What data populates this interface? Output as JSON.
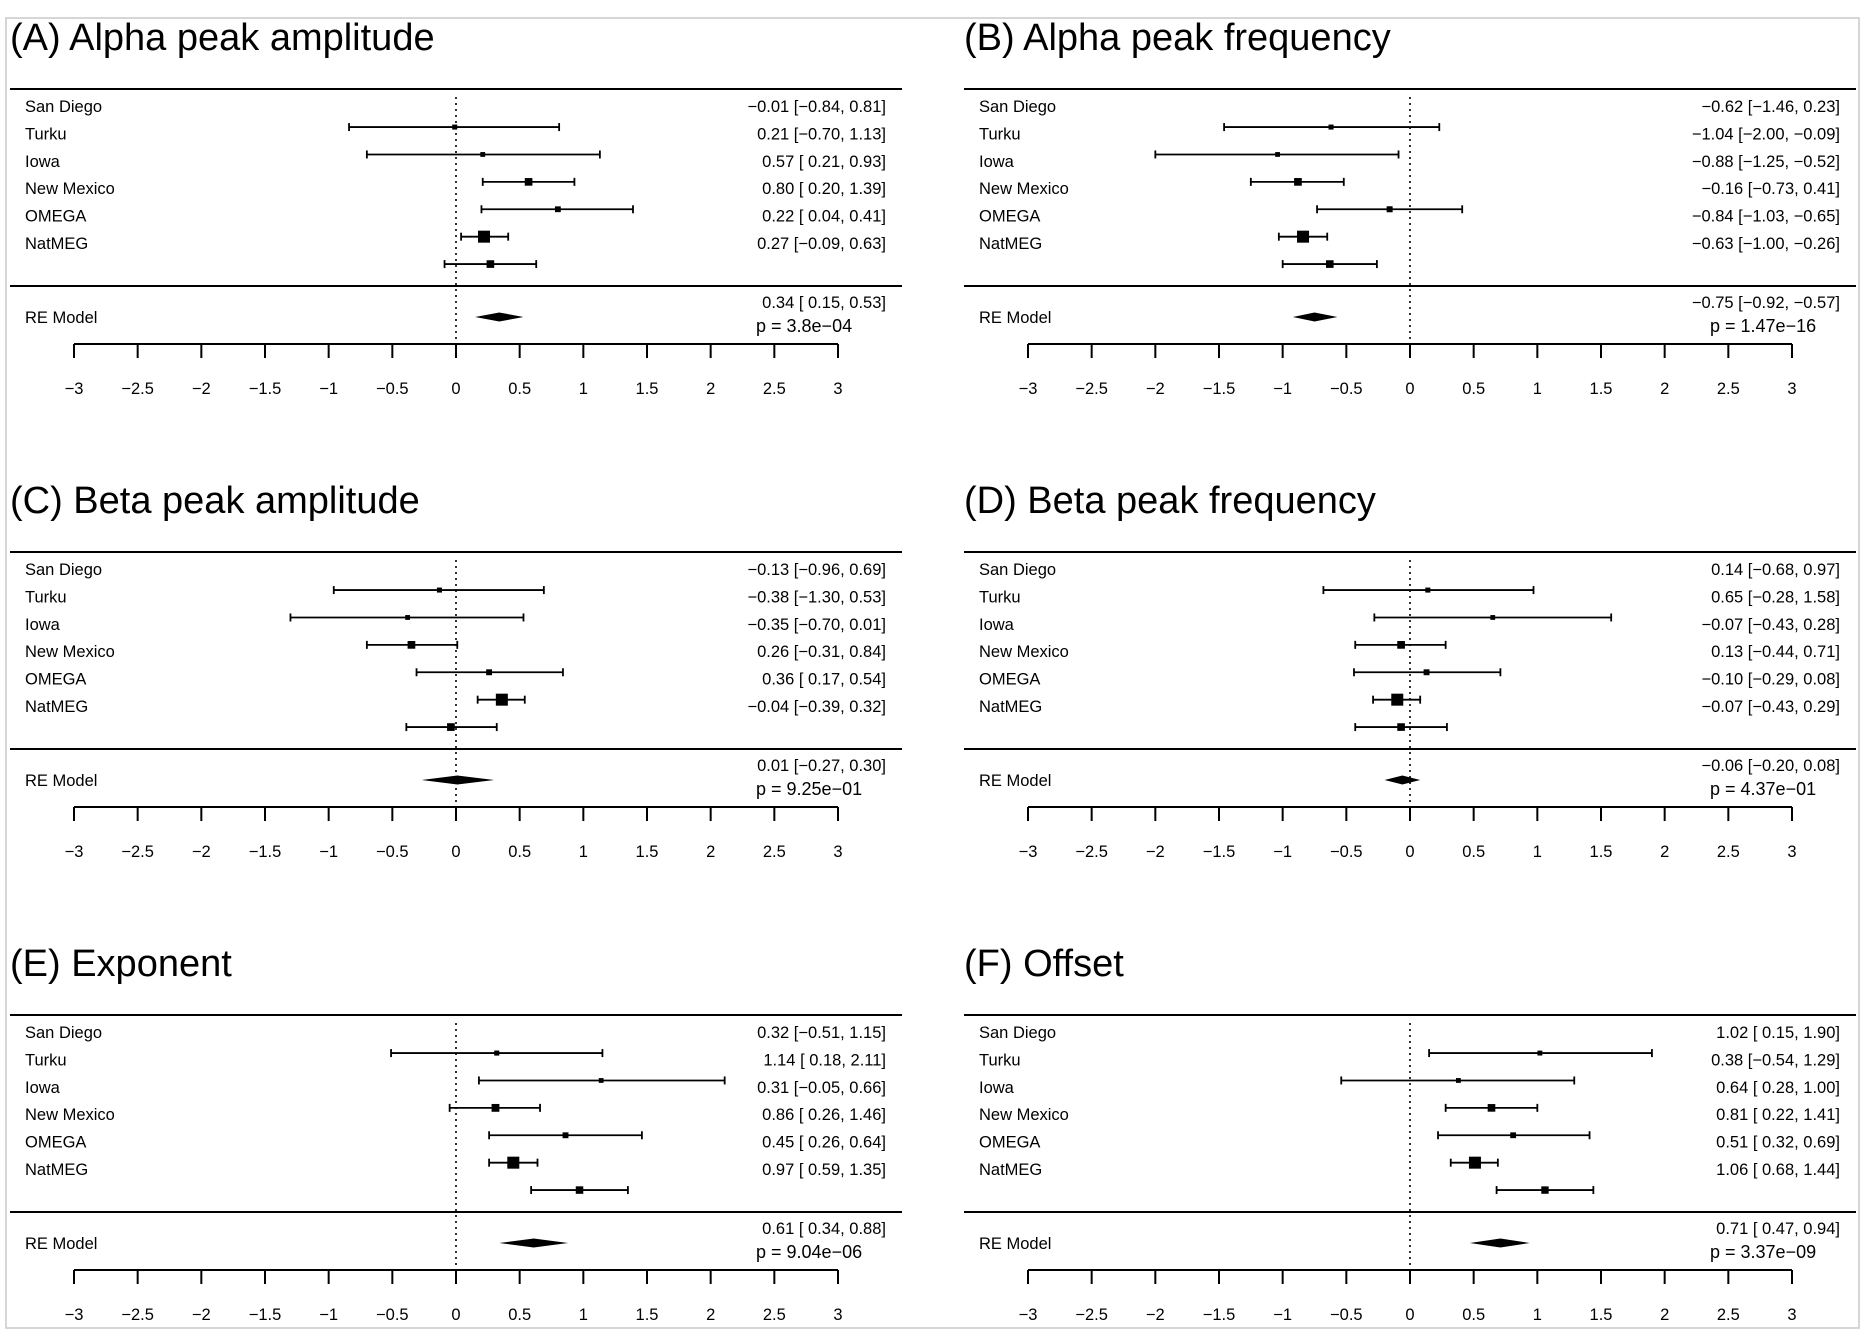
{
  "chart_data": [
    {
      "type": "forest",
      "title": "(A) Alpha peak amplitude",
      "xlim": [
        -3,
        3
      ],
      "xticks": [
        "−3",
        "−2.5",
        "−2",
        "−1.5",
        "−1",
        "−0.5",
        "0",
        "0.5",
        "1",
        "1.5",
        "2",
        "2.5",
        "3"
      ],
      "studies": [
        {
          "name": "San Diego",
          "est": -0.01,
          "lo": -0.84,
          "hi": 0.81,
          "ci_text": "−0.01 [−0.84,  0.81]"
        },
        {
          "name": "Turku",
          "est": 0.21,
          "lo": -0.7,
          "hi": 1.13,
          "ci_text": "0.21 [−0.70,  1.13]"
        },
        {
          "name": "Iowa",
          "est": 0.57,
          "lo": 0.21,
          "hi": 0.93,
          "ci_text": "0.57 [ 0.21,  0.93]"
        },
        {
          "name": "New Mexico",
          "est": 0.8,
          "lo": 0.2,
          "hi": 1.39,
          "ci_text": "0.80 [ 0.20,  1.39]"
        },
        {
          "name": "OMEGA",
          "est": 0.22,
          "lo": 0.04,
          "hi": 0.41,
          "ci_text": "0.22 [ 0.04,  0.41]"
        },
        {
          "name": "NatMEG",
          "est": 0.27,
          "lo": -0.09,
          "hi": 0.63,
          "ci_text": "0.27 [−0.09,  0.63]"
        }
      ],
      "re_model": {
        "label": "RE Model",
        "est": 0.34,
        "lo": 0.15,
        "hi": 0.53,
        "ci_text": "0.34 [ 0.15,  0.53]",
        "p_text": "p = 3.8e−04"
      }
    },
    {
      "type": "forest",
      "title": "(B) Alpha peak frequency",
      "xlim": [
        -3,
        3
      ],
      "xticks": [
        "−3",
        "−2.5",
        "−2",
        "−1.5",
        "−1",
        "−0.5",
        "0",
        "0.5",
        "1",
        "1.5",
        "2",
        "2.5",
        "3"
      ],
      "studies": [
        {
          "name": "San Diego",
          "est": -0.62,
          "lo": -1.46,
          "hi": 0.23,
          "ci_text": "−0.62 [−1.46,  0.23]"
        },
        {
          "name": "Turku",
          "est": -1.04,
          "lo": -2.0,
          "hi": -0.09,
          "ci_text": "−1.04 [−2.00, −0.09]"
        },
        {
          "name": "Iowa",
          "est": -0.88,
          "lo": -1.25,
          "hi": -0.52,
          "ci_text": "−0.88 [−1.25, −0.52]"
        },
        {
          "name": "New Mexico",
          "est": -0.16,
          "lo": -0.73,
          "hi": 0.41,
          "ci_text": "−0.16 [−0.73,  0.41]"
        },
        {
          "name": "OMEGA",
          "est": -0.84,
          "lo": -1.03,
          "hi": -0.65,
          "ci_text": "−0.84 [−1.03, −0.65]"
        },
        {
          "name": "NatMEG",
          "est": -0.63,
          "lo": -1.0,
          "hi": -0.26,
          "ci_text": "−0.63 [−1.00, −0.26]"
        }
      ],
      "re_model": {
        "label": "RE Model",
        "est": -0.75,
        "lo": -0.92,
        "hi": -0.57,
        "ci_text": "−0.75 [−0.92, −0.57]",
        "p_text": "p = 1.47e−16"
      }
    },
    {
      "type": "forest",
      "title": "(C) Beta peak amplitude",
      "xlim": [
        -3,
        3
      ],
      "xticks": [
        "−3",
        "−2.5",
        "−2",
        "−1.5",
        "−1",
        "−0.5",
        "0",
        "0.5",
        "1",
        "1.5",
        "2",
        "2.5",
        "3"
      ],
      "studies": [
        {
          "name": "San Diego",
          "est": -0.13,
          "lo": -0.96,
          "hi": 0.69,
          "ci_text": "−0.13 [−0.96,  0.69]"
        },
        {
          "name": "Turku",
          "est": -0.38,
          "lo": -1.3,
          "hi": 0.53,
          "ci_text": "−0.38 [−1.30,  0.53]"
        },
        {
          "name": "Iowa",
          "est": -0.35,
          "lo": -0.7,
          "hi": 0.01,
          "ci_text": "−0.35 [−0.70,  0.01]"
        },
        {
          "name": "New Mexico",
          "est": 0.26,
          "lo": -0.31,
          "hi": 0.84,
          "ci_text": "0.26 [−0.31,  0.84]"
        },
        {
          "name": "OMEGA",
          "est": 0.36,
          "lo": 0.17,
          "hi": 0.54,
          "ci_text": "0.36 [ 0.17,  0.54]"
        },
        {
          "name": "NatMEG",
          "est": -0.04,
          "lo": -0.39,
          "hi": 0.32,
          "ci_text": "−0.04 [−0.39,  0.32]"
        }
      ],
      "re_model": {
        "label": "RE Model",
        "est": 0.01,
        "lo": -0.27,
        "hi": 0.3,
        "ci_text": "0.01 [−0.27,  0.30]",
        "p_text": "p = 9.25e−01"
      }
    },
    {
      "type": "forest",
      "title": "(D) Beta peak frequency",
      "xlim": [
        -3,
        3
      ],
      "xticks": [
        "−3",
        "−2.5",
        "−2",
        "−1.5",
        "−1",
        "−0.5",
        "0",
        "0.5",
        "1",
        "1.5",
        "2",
        "2.5",
        "3"
      ],
      "studies": [
        {
          "name": "San Diego",
          "est": 0.14,
          "lo": -0.68,
          "hi": 0.97,
          "ci_text": "0.14 [−0.68,  0.97]"
        },
        {
          "name": "Turku",
          "est": 0.65,
          "lo": -0.28,
          "hi": 1.58,
          "ci_text": "0.65 [−0.28,  1.58]"
        },
        {
          "name": "Iowa",
          "est": -0.07,
          "lo": -0.43,
          "hi": 0.28,
          "ci_text": "−0.07 [−0.43,  0.28]"
        },
        {
          "name": "New Mexico",
          "est": 0.13,
          "lo": -0.44,
          "hi": 0.71,
          "ci_text": "0.13 [−0.44,  0.71]"
        },
        {
          "name": "OMEGA",
          "est": -0.1,
          "lo": -0.29,
          "hi": 0.08,
          "ci_text": "−0.10 [−0.29,  0.08]"
        },
        {
          "name": "NatMEG",
          "est": -0.07,
          "lo": -0.43,
          "hi": 0.29,
          "ci_text": "−0.07 [−0.43,  0.29]"
        }
      ],
      "re_model": {
        "label": "RE Model",
        "est": -0.06,
        "lo": -0.2,
        "hi": 0.08,
        "ci_text": "−0.06 [−0.20,  0.08]",
        "p_text": "p = 4.37e−01"
      }
    },
    {
      "type": "forest",
      "title": "(E) Exponent",
      "xlim": [
        -3,
        3
      ],
      "xticks": [
        "−3",
        "−2.5",
        "−2",
        "−1.5",
        "−1",
        "−0.5",
        "0",
        "0.5",
        "1",
        "1.5",
        "2",
        "2.5",
        "3"
      ],
      "studies": [
        {
          "name": "San Diego",
          "est": 0.32,
          "lo": -0.51,
          "hi": 1.15,
          "ci_text": "0.32 [−0.51,  1.15]"
        },
        {
          "name": "Turku",
          "est": 1.14,
          "lo": 0.18,
          "hi": 2.11,
          "ci_text": "1.14 [ 0.18,  2.11]"
        },
        {
          "name": "Iowa",
          "est": 0.31,
          "lo": -0.05,
          "hi": 0.66,
          "ci_text": "0.31 [−0.05,  0.66]"
        },
        {
          "name": "New Mexico",
          "est": 0.86,
          "lo": 0.26,
          "hi": 1.46,
          "ci_text": "0.86 [ 0.26,  1.46]"
        },
        {
          "name": "OMEGA",
          "est": 0.45,
          "lo": 0.26,
          "hi": 0.64,
          "ci_text": "0.45 [ 0.26,  0.64]"
        },
        {
          "name": "NatMEG",
          "est": 0.97,
          "lo": 0.59,
          "hi": 1.35,
          "ci_text": "0.97 [ 0.59,  1.35]"
        }
      ],
      "re_model": {
        "label": "RE Model",
        "est": 0.61,
        "lo": 0.34,
        "hi": 0.88,
        "ci_text": "0.61 [ 0.34,  0.88]",
        "p_text": "p = 9.04e−06"
      }
    },
    {
      "type": "forest",
      "title": "(F) Offset",
      "xlim": [
        -3,
        3
      ],
      "xticks": [
        "−3",
        "−2.5",
        "−2",
        "−1.5",
        "−1",
        "−0.5",
        "0",
        "0.5",
        "1",
        "1.5",
        "2",
        "2.5",
        "3"
      ],
      "studies": [
        {
          "name": "San Diego",
          "est": 1.02,
          "lo": 0.15,
          "hi": 1.9,
          "ci_text": "1.02 [ 0.15,  1.90]"
        },
        {
          "name": "Turku",
          "est": 0.38,
          "lo": -0.54,
          "hi": 1.29,
          "ci_text": "0.38 [−0.54,  1.29]"
        },
        {
          "name": "Iowa",
          "est": 0.64,
          "lo": 0.28,
          "hi": 1.0,
          "ci_text": "0.64 [ 0.28,  1.00]"
        },
        {
          "name": "New Mexico",
          "est": 0.81,
          "lo": 0.22,
          "hi": 1.41,
          "ci_text": "0.81 [ 0.22,  1.41]"
        },
        {
          "name": "OMEGA",
          "est": 0.51,
          "lo": 0.32,
          "hi": 0.69,
          "ci_text": "0.51 [ 0.32,  0.69]"
        },
        {
          "name": "NatMEG",
          "est": 1.06,
          "lo": 0.68,
          "hi": 1.44,
          "ci_text": "1.06 [ 0.68,  1.44]"
        }
      ],
      "re_model": {
        "label": "RE Model",
        "est": 0.71,
        "lo": 0.47,
        "hi": 0.94,
        "ci_text": "0.71 [ 0.47,  0.94]",
        "p_text": "p = 3.37e−09"
      }
    }
  ]
}
